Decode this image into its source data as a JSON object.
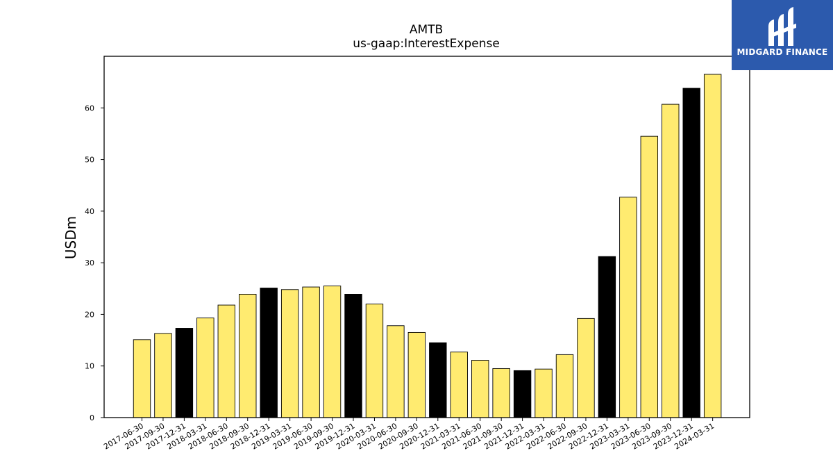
{
  "chart_data": {
    "type": "bar",
    "title": "AMTB",
    "subtitle": "us-gaap:InterestExpense",
    "xlabel": "",
    "ylabel": "USDm",
    "ylim": [
      0,
      70
    ],
    "yticks": [
      0,
      10,
      20,
      30,
      40,
      50,
      60
    ],
    "grid": false,
    "categories": [
      "2017-06-30",
      "2017-09-30",
      "2017-12-31",
      "2018-03-31",
      "2018-06-30",
      "2018-09-30",
      "2018-12-31",
      "2019-03-31",
      "2019-06-30",
      "2019-09-30",
      "2019-12-31",
      "2020-03-31",
      "2020-06-30",
      "2020-09-30",
      "2020-12-31",
      "2021-03-31",
      "2021-06-30",
      "2021-09-30",
      "2021-12-31",
      "2022-03-31",
      "2022-06-30",
      "2022-09-30",
      "2022-12-31",
      "2023-03-31",
      "2023-06-30",
      "2023-09-30",
      "2023-12-31",
      "2024-03-31"
    ],
    "values": [
      15.1,
      16.3,
      17.3,
      19.3,
      21.8,
      23.9,
      25.1,
      24.8,
      25.3,
      25.5,
      23.9,
      22.0,
      17.8,
      16.5,
      14.5,
      12.7,
      11.1,
      9.5,
      9.1,
      9.4,
      12.2,
      19.2,
      31.2,
      42.7,
      54.5,
      60.7,
      63.8,
      66.5
    ],
    "colors": {
      "quarter": "#ffeb70",
      "year_end": "#000000",
      "edge": "#000000"
    }
  },
  "branding": {
    "logo_text": "MIDGARD FINANCE",
    "logo_bg": "#2c5aad"
  }
}
